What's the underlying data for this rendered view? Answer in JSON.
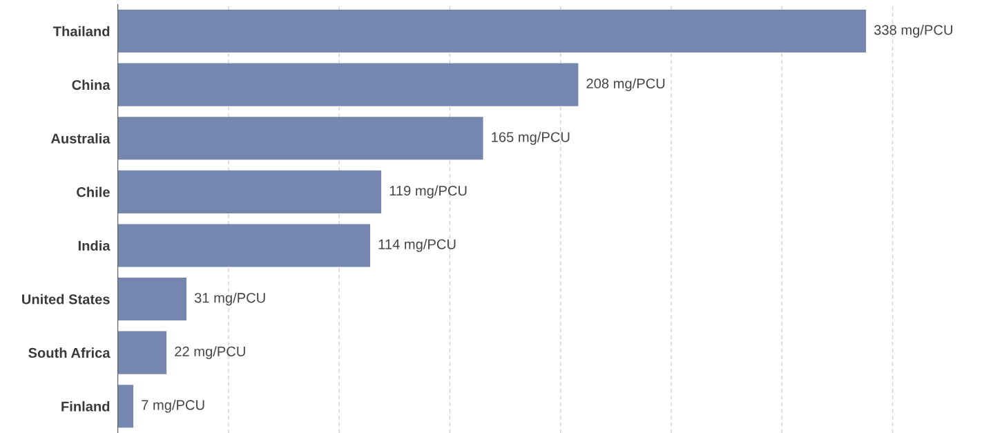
{
  "chart_data": {
    "type": "bar",
    "orientation": "horizontal",
    "categories": [
      "Thailand",
      "China",
      "Australia",
      "Chile",
      "India",
      "United States",
      "South Africa",
      "Finland"
    ],
    "values": [
      338,
      208,
      165,
      119,
      114,
      31,
      22,
      7
    ],
    "value_labels": [
      "338 mg/PCU",
      "208 mg/PCU",
      "165 mg/PCU",
      "119 mg/PCU",
      "114 mg/PCU",
      "31 mg/PCU",
      "22 mg/PCU",
      "7 mg/PCU"
    ],
    "color": "#7587ae",
    "xticks": [
      {
        "value": 50,
        "label": null
      },
      {
        "value": 100,
        "label": null
      },
      {
        "value": 150,
        "label": null
      },
      {
        "value": 200,
        "label": null
      },
      {
        "value": 250,
        "label": null
      },
      {
        "value": 300,
        "label": null
      },
      {
        "value": 350,
        "label": null
      }
    ],
    "grid": "x",
    "tick_labels": "y",
    "legend": false
  }
}
